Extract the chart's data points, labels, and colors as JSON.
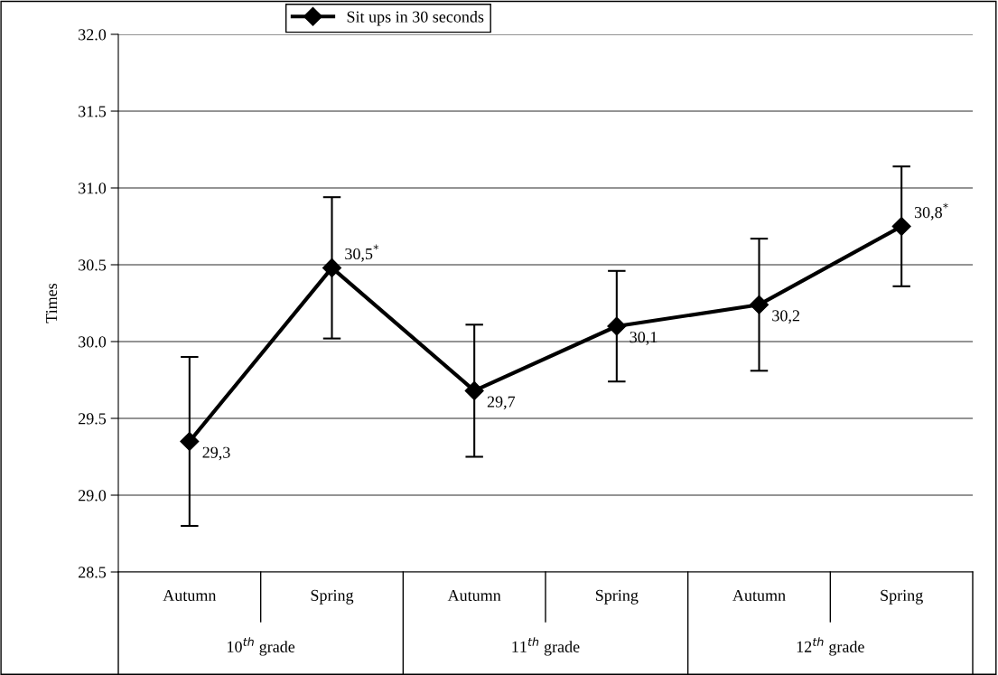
{
  "chart_data": {
    "type": "line",
    "categories": [
      "Autumn",
      "Spring",
      "Autumn",
      "Spring",
      "Autumn",
      "Spring"
    ],
    "series": [
      {
        "name": "Sit ups in 30 seconds",
        "color": "#000000",
        "values": [
          29.35,
          30.48,
          29.68,
          30.1,
          30.24,
          30.75
        ],
        "errors": [
          0.55,
          0.46,
          0.43,
          0.36,
          0.43,
          0.39
        ],
        "value_labels": [
          "29,3",
          "30,5$^{*}$",
          "29,7",
          "30,1",
          "30,2",
          "30,8$^{*}$"
        ]
      }
    ],
    "ylabel": "Times",
    "ylim": [
      28.5,
      32.0
    ],
    "yticks": [
      {
        "value": 28.5,
        "label": "28.5"
      },
      {
        "value": 29.0,
        "label": "29.0"
      },
      {
        "value": 29.5,
        "label": "29.5"
      },
      {
        "value": 30.0,
        "label": "30.0"
      },
      {
        "value": 30.5,
        "label": "30.5"
      },
      {
        "value": 31.0,
        "label": "31.0"
      },
      {
        "value": 31.5,
        "label": "31.5"
      },
      {
        "value": 32.0,
        "label": "32.0"
      }
    ],
    "annotations": [
      "10$^{th}$ grade",
      "11$^{th}$ grade",
      "12$^{th}$ grade"
    ],
    "grid": "y",
    "legend": "top",
    "marker": "diamond",
    "line_style": "solid"
  }
}
